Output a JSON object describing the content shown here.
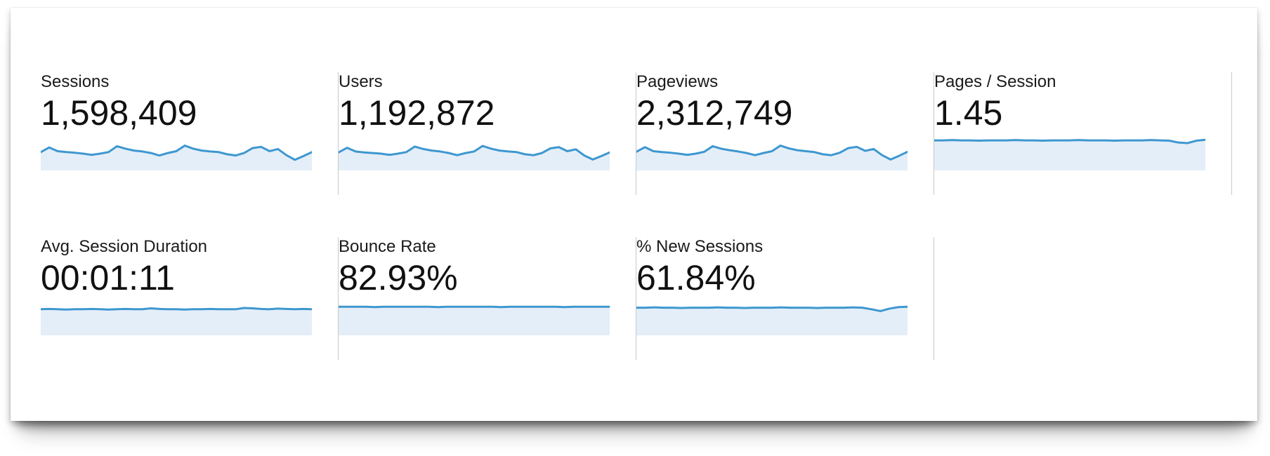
{
  "accent": {
    "line_color": "#3E97D0",
    "fill_color": "#E4EEF8",
    "divider_color": "#C9C9C9",
    "text_color": "#1A1A1A"
  },
  "cards": [
    {
      "label": "Sessions",
      "value": "1,598,409"
    },
    {
      "label": "Users",
      "value": "1,192,872"
    },
    {
      "label": "Pageviews",
      "value": "2,312,749"
    },
    {
      "label": "Pages / Session",
      "value": "1.45"
    },
    {
      "label": "Avg. Session Duration",
      "value": "00:01:11"
    },
    {
      "label": "Bounce Rate",
      "value": "82.93%"
    },
    {
      "label": "% New Sessions",
      "value": "61.84%"
    }
  ],
  "chart_data": [
    {
      "type": "area",
      "metric": "Sessions",
      "unit": "relative level (no axis shown)",
      "ylim": [
        0,
        100
      ],
      "values": [
        55,
        70,
        58,
        55,
        53,
        50,
        46,
        50,
        55,
        74,
        66,
        60,
        57,
        52,
        44,
        52,
        58,
        76,
        66,
        60,
        57,
        55,
        48,
        44,
        52,
        68,
        72,
        58,
        65,
        45,
        30,
        42,
        55
      ]
    },
    {
      "type": "area",
      "metric": "Users",
      "unit": "relative level (no axis shown)",
      "ylim": [
        0,
        100
      ],
      "values": [
        54,
        69,
        57,
        54,
        52,
        50,
        46,
        50,
        55,
        73,
        65,
        60,
        57,
        52,
        45,
        52,
        57,
        75,
        66,
        60,
        57,
        55,
        48,
        45,
        52,
        67,
        71,
        58,
        64,
        44,
        31,
        42,
        54
      ]
    },
    {
      "type": "area",
      "metric": "Pageviews",
      "unit": "relative level (no axis shown)",
      "ylim": [
        0,
        100
      ],
      "values": [
        56,
        71,
        58,
        55,
        53,
        50,
        46,
        50,
        56,
        74,
        66,
        61,
        57,
        52,
        45,
        52,
        58,
        76,
        67,
        61,
        58,
        55,
        48,
        45,
        53,
        68,
        72,
        59,
        65,
        45,
        31,
        43,
        56
      ]
    },
    {
      "type": "area",
      "metric": "Pages / Session",
      "unit": "relative level (no axis shown)",
      "ylim": [
        0,
        100
      ],
      "values": [
        93,
        93,
        94,
        93,
        93,
        92,
        93,
        93,
        93,
        94,
        93,
        93,
        92,
        93,
        93,
        93,
        94,
        93,
        93,
        93,
        92,
        93,
        93,
        93,
        94,
        93,
        92,
        86,
        84,
        92,
        95
      ]
    },
    {
      "type": "area",
      "metric": "Avg. Session Duration",
      "unit": "relative level (no axis shown)",
      "ylim": [
        0,
        100
      ],
      "values": [
        80,
        81,
        80,
        79,
        80,
        80,
        81,
        80,
        79,
        80,
        81,
        80,
        80,
        83,
        81,
        80,
        80,
        79,
        80,
        80,
        81,
        80,
        80,
        80,
        84,
        83,
        81,
        80,
        82,
        81,
        80,
        81,
        80
      ]
    },
    {
      "type": "area",
      "metric": "Bounce Rate",
      "unit": "relative level (no axis shown)",
      "ylim": [
        0,
        100
      ],
      "values": [
        88,
        88,
        88,
        88,
        87,
        88,
        88,
        88,
        88,
        88,
        88,
        87,
        88,
        88,
        88,
        88,
        88,
        88,
        87,
        88,
        88,
        88,
        88,
        88,
        88,
        87,
        88,
        88,
        88,
        88,
        88
      ]
    },
    {
      "type": "area",
      "metric": "% New Sessions",
      "unit": "relative level (no axis shown)",
      "ylim": [
        0,
        100
      ],
      "values": [
        85,
        85,
        86,
        85,
        85,
        84,
        85,
        85,
        85,
        86,
        85,
        85,
        84,
        85,
        85,
        85,
        86,
        85,
        85,
        85,
        84,
        85,
        85,
        85,
        86,
        85,
        80,
        74,
        82,
        87,
        88
      ]
    }
  ]
}
